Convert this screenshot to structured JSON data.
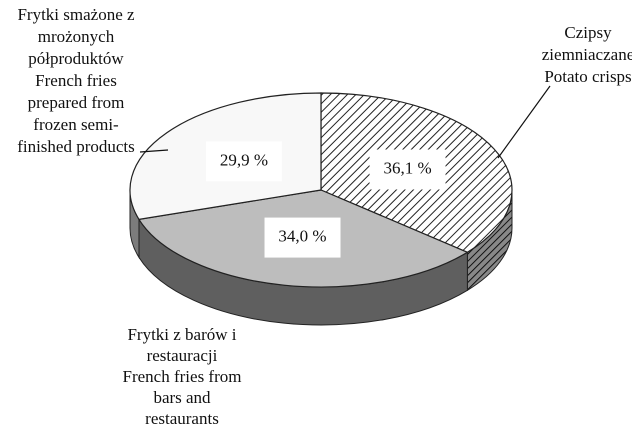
{
  "chart_data": {
    "type": "pie3d",
    "categories": [
      "Czipsy\nziemniaczane\nPotato crisps",
      "Frytki z barów i\nrestauracji\nFrench fries from\nbars and\nrestaurants",
      "Frytki smażone z\nmrożonych\npółproduktów\nFrench fries\nprepared from\nfrozen semi-\nfinished products"
    ],
    "values": [
      36.1,
      34.0,
      29.9
    ],
    "value_labels": [
      "36,1 %",
      "34,0 %",
      "29,9 %"
    ],
    "colors": [
      "#ffffff",
      "#bdbdbd",
      "#f8f8f8"
    ],
    "patterns": [
      "diagonal",
      "solid",
      "solid"
    ]
  }
}
